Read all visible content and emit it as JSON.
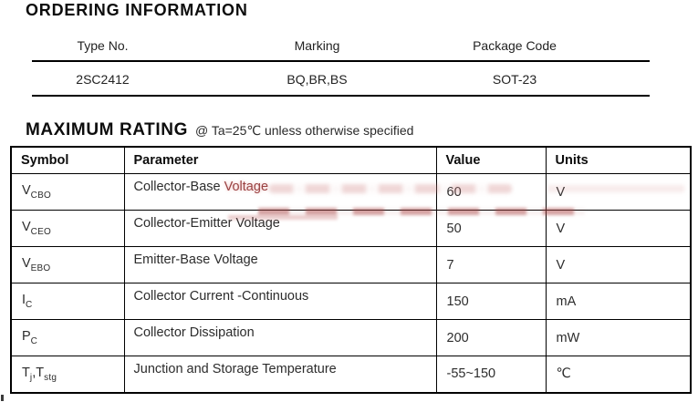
{
  "colors": {
    "text": "#1c1c1c",
    "highlight_red": "#9a4343",
    "watermark_red": "#c07a7a",
    "border": "#000000"
  },
  "ordering": {
    "title": "ORDERING INFORMATION",
    "columns": [
      "Type No.",
      "Marking",
      "Package Code"
    ],
    "row": [
      "2SC2412",
      "BQ,BR,BS",
      "SOT-23"
    ]
  },
  "maximum_rating": {
    "title": "MAXIMUM RATING",
    "condition": "@ Ta=25℃ unless otherwise specified",
    "columns": [
      "Symbol",
      "Parameter",
      "Value",
      "Units"
    ],
    "rows": [
      {
        "symbol": [
          {
            "text": "V"
          },
          {
            "text": "CBO",
            "sub": true
          }
        ],
        "parameter": "Collector-Base ",
        "parameter_red": "Voltage",
        "value": "60",
        "units": "V"
      },
      {
        "symbol": [
          {
            "text": "V"
          },
          {
            "text": "CEO",
            "sub": true
          }
        ],
        "parameter": "Collector-Emitter Voltage",
        "parameter_red": "",
        "value": "50",
        "units": "V"
      },
      {
        "symbol": [
          {
            "text": "V"
          },
          {
            "text": "EBO",
            "sub": true
          }
        ],
        "parameter": "Emitter-Base Voltage",
        "parameter_red": "",
        "value": "7",
        "units": "V"
      },
      {
        "symbol": [
          {
            "text": "I"
          },
          {
            "text": "C",
            "sub": true
          }
        ],
        "parameter": "Collector Current -Continuous",
        "parameter_red": "",
        "value": "150",
        "units": "mA"
      },
      {
        "symbol": [
          {
            "text": "P"
          },
          {
            "text": "C",
            "sub": true
          }
        ],
        "parameter": "Collector Dissipation",
        "parameter_red": "",
        "value": "200",
        "units": "mW"
      },
      {
        "symbol": [
          {
            "text": "T"
          },
          {
            "text": "j",
            "sub": true
          },
          {
            "text": ",T"
          },
          {
            "text": "stg",
            "sub": true
          }
        ],
        "parameter": "Junction and Storage Temperature",
        "parameter_red": "",
        "value": "-55~150",
        "units": "℃"
      }
    ]
  }
}
